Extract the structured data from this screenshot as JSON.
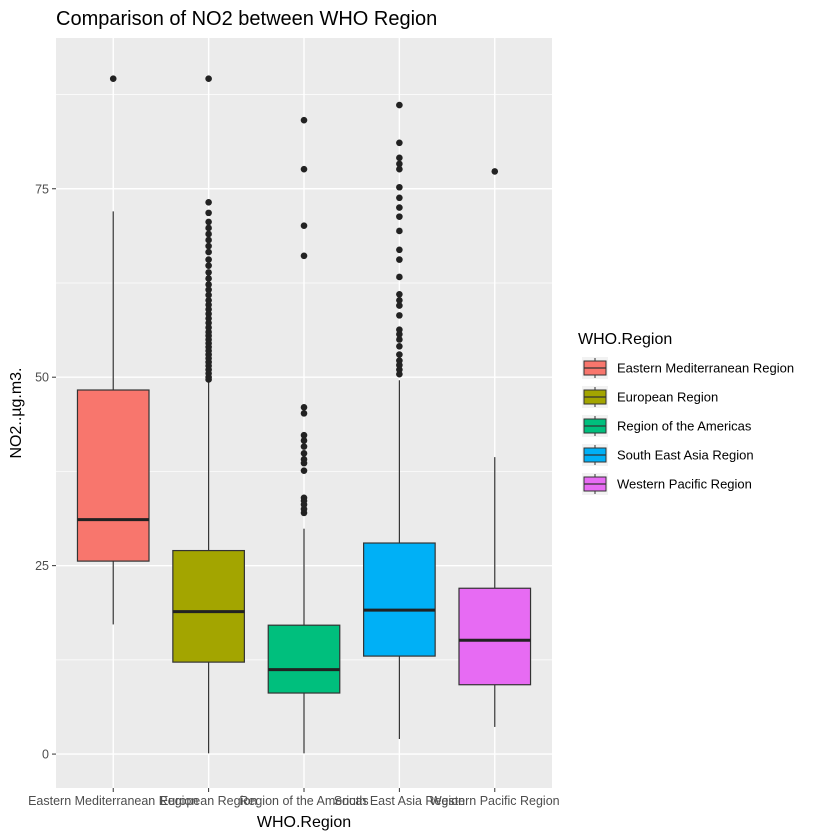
{
  "chart_data": {
    "type": "boxplot",
    "title": "Comparison of NO2 between WHO Region",
    "xlabel": "WHO.Region",
    "ylabel": "NO2..µg.m3.",
    "ylim": [
      -4.5,
      95
    ],
    "yticks": [
      0,
      25,
      50,
      75
    ],
    "grid": true,
    "legend": {
      "title": "WHO.Region",
      "placement": "right"
    },
    "categories": [
      "Eastern Mediterranean Region",
      "European Region",
      "Region of the Americas",
      "South East Asia Region",
      "Western Pacific Region"
    ],
    "series": [
      {
        "name": "Eastern Mediterranean Region",
        "color": "#F8766D",
        "whisker_low": 17.2,
        "q1": 25.6,
        "median": 31.1,
        "q3": 48.3,
        "whisker_high": 72.0,
        "outliers": [
          89.6
        ]
      },
      {
        "name": "European Region",
        "color": "#A3A500",
        "whisker_low": 0.1,
        "q1": 12.2,
        "median": 18.9,
        "q3": 27.0,
        "whisker_high": 49.4,
        "outliers": [
          89.6,
          73.2,
          71.8,
          70.6,
          69.8,
          69.0,
          68.2,
          67.4,
          66.6,
          65.6,
          64.8,
          63.9,
          63.1,
          62.3,
          61.6,
          60.9,
          60.2,
          59.6,
          59.0,
          58.4,
          57.8,
          57.2,
          56.6,
          56.0,
          55.5,
          55.0,
          54.5,
          54.0,
          53.5,
          53.0,
          52.5,
          52.0,
          51.5,
          51.0,
          50.5,
          50.0,
          49.7
        ]
      },
      {
        "name": "Region of the Americas",
        "color": "#00BF7D",
        "whisker_low": 0.1,
        "q1": 8.1,
        "median": 11.2,
        "q3": 17.1,
        "whisker_high": 29.9,
        "outliers": [
          84.1,
          77.6,
          70.1,
          66.1,
          46.0,
          45.2,
          42.3,
          41.6,
          40.8,
          39.9,
          39.1,
          38.6,
          37.6,
          34.0,
          33.6,
          33.1,
          32.5,
          32.0
        ]
      },
      {
        "name": "South East Asia Region",
        "color": "#00B0F6",
        "whisker_low": 2.0,
        "q1": 13.0,
        "median": 19.1,
        "q3": 28.0,
        "whisker_high": 49.6,
        "outliers": [
          86.1,
          81.1,
          79.1,
          78.3,
          77.6,
          75.2,
          73.8,
          72.5,
          71.3,
          69.4,
          66.9,
          65.6,
          63.3,
          61.0,
          60.2,
          59.5,
          58.2,
          56.3,
          55.7,
          55.0,
          54.1,
          53.0,
          52.2,
          51.6,
          51.0,
          50.4
        ]
      },
      {
        "name": "Western Pacific Region",
        "color": "#E76BF3",
        "whisker_low": 3.6,
        "q1": 9.2,
        "median": 15.1,
        "q3": 22.0,
        "whisker_high": 39.4,
        "outliers": [
          77.3
        ]
      }
    ]
  }
}
